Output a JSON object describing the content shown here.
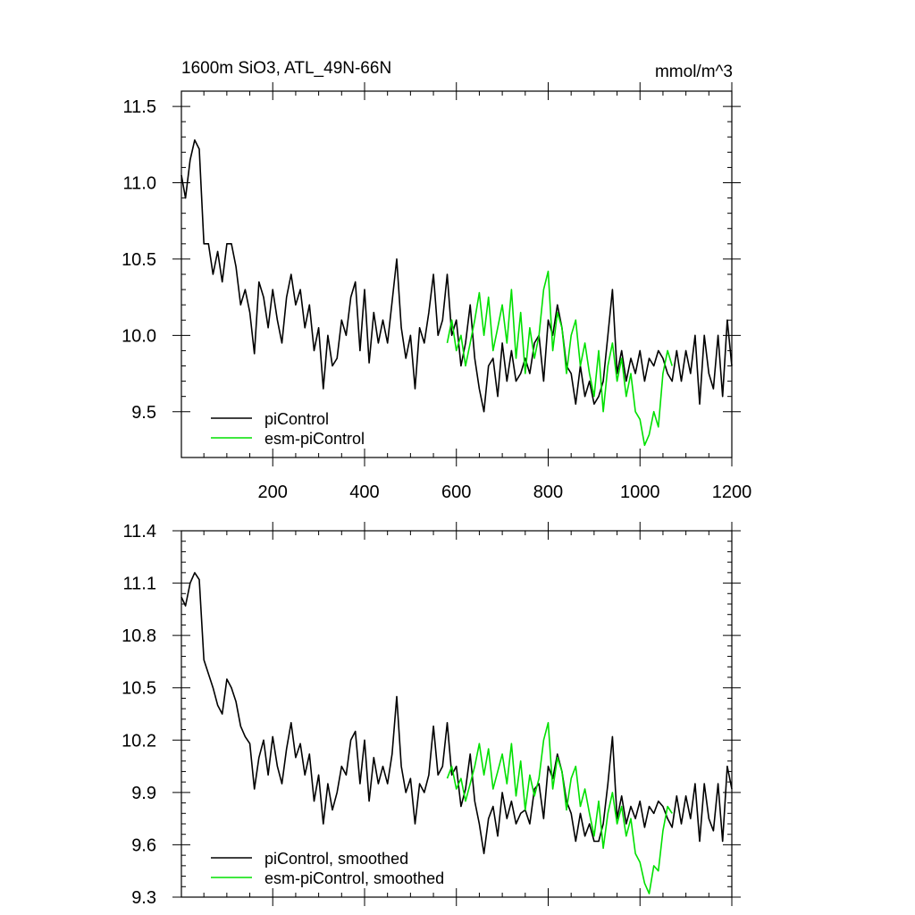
{
  "colors": {
    "piControl": "#000000",
    "esm_piControl": "#00e000"
  },
  "chart_data": [
    {
      "type": "line",
      "title": "1600m SiO3, ATL_49N-66N",
      "units": "mmol/m^3",
      "xlim": [
        1,
        1200
      ],
      "ylim": [
        9.2,
        11.6
      ],
      "xticks": [
        200,
        400,
        600,
        800,
        1000,
        1200
      ],
      "xtick_labels": [
        "200",
        "400",
        "600",
        "800",
        "1000",
        "1200"
      ],
      "yticks": [
        9.5,
        10.0,
        10.5,
        11.0,
        11.5
      ],
      "ytick_labels": [
        "9.5",
        "10.0",
        "10.5",
        "11.0",
        "11.5"
      ],
      "legend_position": "bottom-left",
      "series": [
        {
          "name": "piControl",
          "color": "#000000",
          "x": [
            1,
            10,
            20,
            30,
            40,
            50,
            60,
            70,
            80,
            90,
            100,
            110,
            120,
            130,
            140,
            150,
            160,
            170,
            180,
            190,
            200,
            210,
            220,
            230,
            240,
            250,
            260,
            270,
            280,
            290,
            300,
            310,
            320,
            330,
            340,
            350,
            360,
            370,
            380,
            390,
            400,
            410,
            420,
            430,
            440,
            450,
            460,
            470,
            480,
            490,
            500,
            510,
            520,
            530,
            540,
            550,
            560,
            570,
            580,
            590,
            600,
            610,
            620,
            630,
            640,
            650,
            660,
            670,
            680,
            690,
            700,
            710,
            720,
            730,
            740,
            750,
            760,
            770,
            780,
            790,
            800,
            810,
            820,
            830,
            840,
            850,
            860,
            870,
            880,
            890,
            900,
            910,
            920,
            930,
            940,
            950,
            960,
            970,
            980,
            990,
            1000,
            1010,
            1020,
            1030,
            1040,
            1050,
            1060,
            1070,
            1080,
            1090,
            1100,
            1110,
            1120,
            1130,
            1140,
            1150,
            1160,
            1170,
            1180,
            1190,
            1200
          ],
          "y": [
            11.05,
            10.9,
            11.15,
            11.28,
            11.22,
            10.6,
            10.6,
            10.4,
            10.55,
            10.35,
            10.6,
            10.6,
            10.45,
            10.2,
            10.3,
            10.15,
            9.88,
            10.35,
            10.25,
            10.05,
            10.3,
            10.1,
            9.95,
            10.25,
            10.4,
            10.2,
            10.3,
            10.05,
            10.2,
            9.9,
            10.05,
            9.65,
            10.0,
            9.8,
            9.85,
            10.1,
            10.0,
            10.25,
            10.35,
            9.9,
            10.3,
            9.82,
            10.15,
            9.95,
            10.1,
            9.95,
            10.22,
            10.5,
            10.05,
            9.85,
            10.0,
            9.65,
            10.05,
            9.95,
            10.15,
            10.4,
            10.0,
            10.1,
            10.4,
            10.0,
            10.1,
            9.8,
            9.95,
            10.2,
            9.85,
            9.65,
            9.5,
            9.8,
            9.85,
            9.6,
            9.95,
            9.7,
            9.9,
            9.7,
            9.75,
            9.85,
            9.75,
            9.95,
            10.0,
            9.7,
            10.1,
            10.0,
            10.2,
            10.05,
            9.8,
            9.75,
            9.55,
            9.8,
            9.6,
            9.7,
            9.55,
            9.6,
            9.7,
            10.0,
            10.3,
            9.75,
            9.9,
            9.7,
            9.85,
            9.75,
            9.9,
            9.7,
            9.85,
            9.8,
            9.9,
            9.85,
            9.75,
            9.7,
            9.9,
            9.7,
            9.9,
            9.75,
            10.0,
            9.55,
            10.0,
            9.75,
            9.65,
            10.0,
            9.6,
            10.1,
            9.8
          ]
        },
        {
          "name": "esm-piControl",
          "color": "#00e000",
          "x": [
            580,
            590,
            600,
            610,
            620,
            630,
            640,
            650,
            660,
            670,
            680,
            690,
            700,
            710,
            720,
            730,
            740,
            750,
            760,
            770,
            780,
            790,
            800,
            810,
            820,
            830,
            840,
            850,
            860,
            870,
            880,
            890,
            900,
            910,
            920,
            930,
            940,
            950,
            960,
            970,
            980,
            990,
            1000,
            1010,
            1020,
            1030,
            1040,
            1050,
            1060,
            1070
          ],
          "y": [
            9.95,
            10.1,
            9.9,
            10.0,
            9.8,
            9.95,
            10.1,
            10.28,
            10.0,
            10.25,
            9.9,
            10.05,
            10.2,
            9.95,
            10.3,
            9.85,
            10.15,
            9.75,
            10.05,
            9.85,
            10.0,
            10.3,
            10.42,
            9.9,
            10.15,
            10.05,
            9.75,
            10.0,
            10.1,
            9.8,
            9.95,
            9.75,
            9.6,
            9.9,
            9.5,
            9.8,
            9.95,
            9.7,
            9.85,
            9.6,
            9.75,
            9.5,
            9.45,
            9.28,
            9.35,
            9.5,
            9.4,
            9.75,
            9.9,
            9.8
          ]
        }
      ]
    },
    {
      "type": "line",
      "title": "",
      "xlim": [
        1,
        1200
      ],
      "ylim": [
        9.3,
        11.4
      ],
      "yticks": [
        9.3,
        9.6,
        9.9,
        10.2,
        10.5,
        10.8,
        11.1,
        11.4
      ],
      "ytick_labels": [
        "9.3",
        "9.6",
        "9.9",
        "10.2",
        "10.5",
        "10.8",
        "11.1",
        "11.4"
      ],
      "legend_position": "bottom-left",
      "series": [
        {
          "name": "piControl, smoothed",
          "color": "#000000",
          "x": [
            1,
            10,
            20,
            30,
            40,
            50,
            60,
            70,
            80,
            90,
            100,
            110,
            120,
            130,
            140,
            150,
            160,
            170,
            180,
            190,
            200,
            210,
            220,
            230,
            240,
            250,
            260,
            270,
            280,
            290,
            300,
            310,
            320,
            330,
            340,
            350,
            360,
            370,
            380,
            390,
            400,
            410,
            420,
            430,
            440,
            450,
            460,
            470,
            480,
            490,
            500,
            510,
            520,
            530,
            540,
            550,
            560,
            570,
            580,
            590,
            600,
            610,
            620,
            630,
            640,
            650,
            660,
            670,
            680,
            690,
            700,
            710,
            720,
            730,
            740,
            750,
            760,
            770,
            780,
            790,
            800,
            810,
            820,
            830,
            840,
            850,
            860,
            870,
            880,
            890,
            900,
            910,
            920,
            930,
            940,
            950,
            960,
            970,
            980,
            990,
            1000,
            1010,
            1020,
            1030,
            1040,
            1050,
            1060,
            1070,
            1080,
            1090,
            1100,
            1110,
            1120,
            1130,
            1140,
            1150,
            1160,
            1170,
            1180,
            1190,
            1200
          ],
          "y": [
            11.02,
            10.97,
            11.1,
            11.16,
            11.12,
            10.66,
            10.58,
            10.5,
            10.4,
            10.35,
            10.55,
            10.5,
            10.42,
            10.28,
            10.22,
            10.18,
            9.92,
            10.1,
            10.2,
            10.0,
            10.22,
            10.05,
            9.95,
            10.15,
            10.3,
            10.1,
            10.18,
            10.0,
            10.12,
            9.85,
            10.0,
            9.72,
            9.95,
            9.8,
            9.9,
            10.05,
            10.0,
            10.2,
            10.25,
            9.95,
            10.2,
            9.85,
            10.1,
            9.95,
            10.05,
            9.95,
            10.12,
            10.45,
            10.05,
            9.9,
            9.98,
            9.72,
            9.95,
            9.9,
            10.0,
            10.28,
            10.0,
            10.05,
            10.3,
            10.0,
            10.05,
            9.82,
            9.92,
            10.12,
            9.85,
            9.72,
            9.55,
            9.75,
            9.82,
            9.65,
            9.9,
            9.75,
            9.85,
            9.72,
            9.78,
            9.8,
            9.72,
            9.92,
            9.95,
            9.75,
            10.05,
            9.98,
            10.12,
            10.02,
            9.85,
            9.78,
            9.62,
            9.78,
            9.65,
            9.72,
            9.62,
            9.62,
            9.72,
            9.95,
            10.22,
            9.75,
            9.88,
            9.72,
            9.82,
            9.75,
            9.85,
            9.7,
            9.82,
            9.78,
            9.85,
            9.82,
            9.75,
            9.7,
            9.88,
            9.72,
            9.88,
            9.75,
            9.95,
            9.62,
            9.95,
            9.75,
            9.68,
            9.95,
            9.62,
            10.05,
            9.92
          ]
        },
        {
          "name": "esm-piControl, smoothed",
          "color": "#00e000",
          "x": [
            580,
            590,
            600,
            610,
            620,
            630,
            640,
            650,
            660,
            670,
            680,
            690,
            700,
            710,
            720,
            730,
            740,
            750,
            760,
            770,
            780,
            790,
            800,
            810,
            820,
            830,
            840,
            850,
            860,
            870,
            880,
            890,
            900,
            910,
            920,
            930,
            940,
            950,
            960,
            970,
            980,
            990,
            1000,
            1010,
            1020,
            1030,
            1040,
            1050,
            1060,
            1070
          ],
          "y": [
            9.98,
            10.05,
            9.92,
            9.98,
            9.85,
            9.95,
            10.05,
            10.18,
            10.0,
            10.15,
            9.92,
            10.02,
            10.12,
            9.95,
            10.18,
            9.88,
            10.08,
            9.8,
            10.0,
            9.88,
            9.98,
            10.2,
            10.3,
            9.92,
            10.1,
            10.02,
            9.8,
            9.98,
            10.05,
            9.82,
            9.92,
            9.78,
            9.65,
            9.85,
            9.58,
            9.78,
            9.9,
            9.72,
            9.82,
            9.65,
            9.75,
            9.55,
            9.5,
            9.38,
            9.32,
            9.48,
            9.45,
            9.68,
            9.82,
            9.78
          ]
        }
      ]
    }
  ]
}
